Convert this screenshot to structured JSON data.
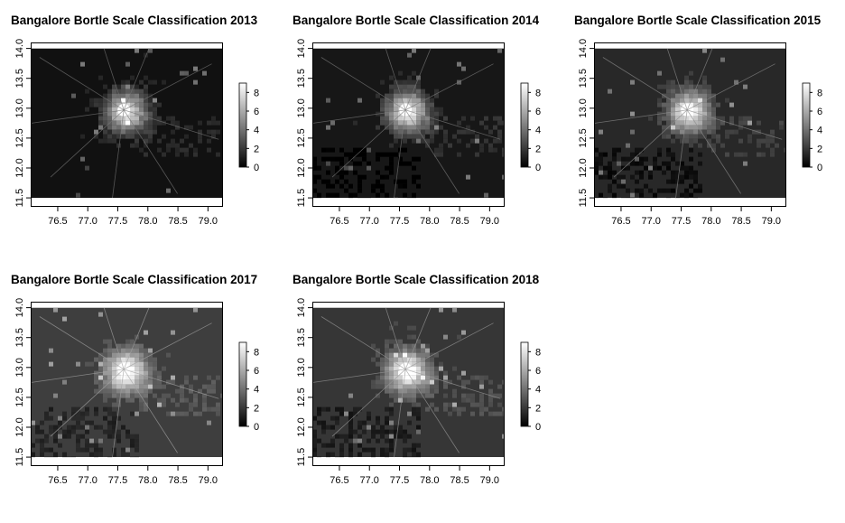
{
  "chart_data": [
    {
      "type": "heatmap",
      "title": "Bangalore Bortle Scale Classification 2013",
      "xlim": [
        76.05,
        79.25
      ],
      "ylim": [
        11.35,
        14.1
      ],
      "data_extent": {
        "x": [
          76.05,
          79.25
        ],
        "y": [
          11.5,
          14.0
        ]
      },
      "x_ticks": [
        "76.5",
        "77.0",
        "77.5",
        "78.0",
        "78.5",
        "79.0"
      ],
      "y_ticks": [
        "11.5",
        "12.0",
        "12.5",
        "13.0",
        "13.5",
        "14.0"
      ],
      "legend": {
        "ticks": [
          "0",
          "2",
          "4",
          "6",
          "8"
        ],
        "range": [
          0,
          9
        ],
        "colors": [
          "#000000",
          "#ffffff"
        ],
        "placement": "right"
      },
      "background_level": 0.6,
      "city_center": [
        77.6,
        12.97
      ]
    },
    {
      "type": "heatmap",
      "title": "Bangalore Bortle Scale Classification 2014",
      "xlim": [
        76.05,
        79.25
      ],
      "ylim": [
        11.35,
        14.1
      ],
      "data_extent": {
        "x": [
          76.05,
          79.25
        ],
        "y": [
          11.5,
          14.0
        ]
      },
      "x_ticks": [
        "76.5",
        "77.0",
        "77.5",
        "78.0",
        "78.5",
        "79.0"
      ],
      "y_ticks": [
        "11.5",
        "12.0",
        "12.5",
        "13.0",
        "13.5",
        "14.0"
      ],
      "legend": {
        "ticks": [
          "0",
          "2",
          "4",
          "6",
          "8"
        ],
        "range": [
          0,
          9
        ],
        "colors": [
          "#000000",
          "#ffffff"
        ],
        "placement": "right"
      },
      "background_level": 0.8,
      "city_center": [
        77.6,
        12.97
      ]
    },
    {
      "type": "heatmap",
      "title": "Bangalore Bortle Scale Classification 2015",
      "xlim": [
        76.05,
        79.25
      ],
      "ylim": [
        11.35,
        14.1
      ],
      "data_extent": {
        "x": [
          76.05,
          79.25
        ],
        "y": [
          11.5,
          14.0
        ]
      },
      "x_ticks": [
        "76.5",
        "77.0",
        "77.5",
        "78.0",
        "78.5",
        "79.0"
      ],
      "y_ticks": [
        "11.5",
        "12.0",
        "12.5",
        "13.0",
        "13.5",
        "14.0"
      ],
      "legend": {
        "ticks": [
          "0",
          "2",
          "4",
          "6",
          "8"
        ],
        "range": [
          0,
          9
        ],
        "colors": [
          "#000000",
          "#ffffff"
        ],
        "placement": "right"
      },
      "background_level": 1.4,
      "city_center": [
        77.6,
        12.97
      ]
    },
    {
      "type": "heatmap",
      "title": "Bangalore Bortle Scale Classification 2017",
      "xlim": [
        76.05,
        79.25
      ],
      "ylim": [
        11.35,
        14.1
      ],
      "data_extent": {
        "x": [
          76.05,
          79.25
        ],
        "y": [
          11.5,
          14.0
        ]
      },
      "x_ticks": [
        "76.5",
        "77.0",
        "77.5",
        "78.0",
        "78.5",
        "79.0"
      ],
      "y_ticks": [
        "11.5",
        "12.0",
        "12.5",
        "13.0",
        "13.5",
        "14.0"
      ],
      "legend": {
        "ticks": [
          "0",
          "2",
          "4",
          "6",
          "8"
        ],
        "range": [
          0,
          9
        ],
        "colors": [
          "#000000",
          "#ffffff"
        ],
        "placement": "right"
      },
      "background_level": 2.2,
      "city_center": [
        77.6,
        12.97
      ]
    },
    {
      "type": "heatmap",
      "title": "Bangalore Bortle Scale Classification 2018",
      "xlim": [
        76.05,
        79.25
      ],
      "ylim": [
        11.35,
        14.1
      ],
      "data_extent": {
        "x": [
          76.05,
          79.25
        ],
        "y": [
          11.5,
          14.0
        ]
      },
      "x_ticks": [
        "76.5",
        "77.0",
        "77.5",
        "78.0",
        "78.5",
        "79.0"
      ],
      "y_ticks": [
        "11.5",
        "12.0",
        "12.5",
        "13.0",
        "13.5",
        "14.0"
      ],
      "legend": {
        "ticks": [
          "0",
          "2",
          "4",
          "6",
          "8"
        ],
        "range": [
          0,
          9
        ],
        "colors": [
          "#000000",
          "#ffffff"
        ],
        "placement": "right"
      },
      "background_level": 1.9,
      "city_center": [
        77.6,
        12.97
      ]
    }
  ]
}
